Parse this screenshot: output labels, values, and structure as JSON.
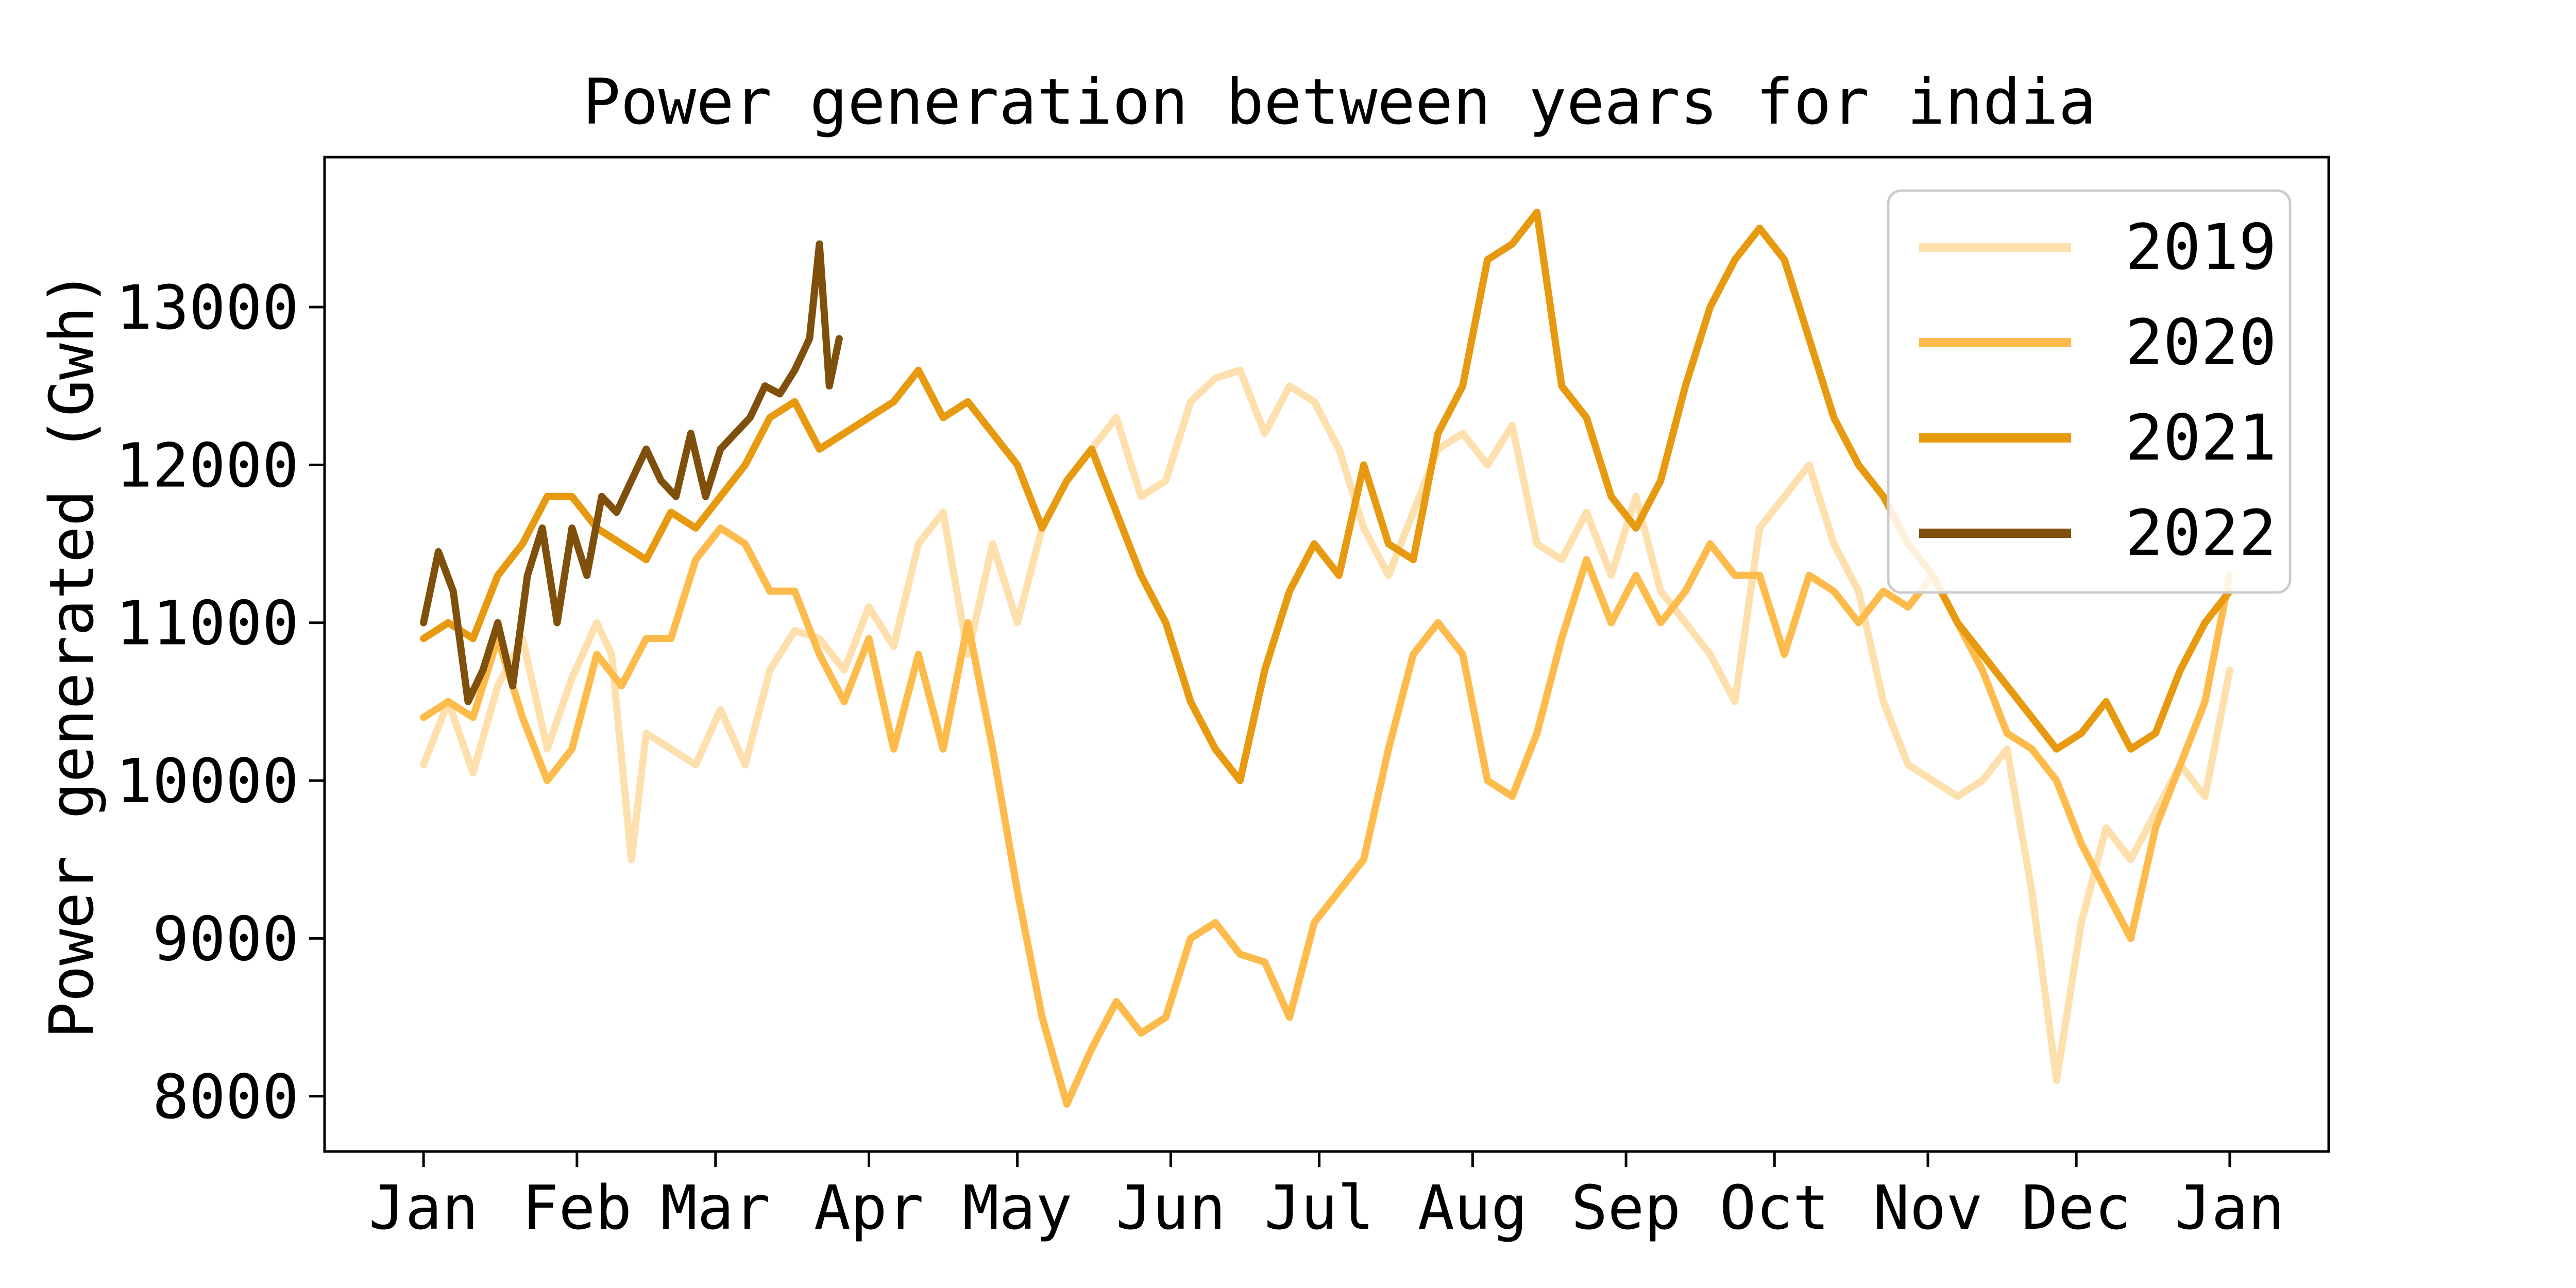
{
  "chart_data": {
    "type": "line",
    "title": "Power generation between years for india",
    "xlabel": "",
    "ylabel": "Power generated (Gwh)",
    "x_ticks": [
      "Jan",
      "Feb",
      "Mar",
      "Apr",
      "May",
      "Jun",
      "Jul",
      "Aug",
      "Sep",
      "Oct",
      "Nov",
      "Dec",
      "Jan"
    ],
    "y_ticks": [
      8000,
      9000,
      10000,
      11000,
      12000,
      13000
    ],
    "xlim_days": [
      -20,
      385
    ],
    "ylim": [
      7650,
      13950
    ],
    "legend_position": "top-right",
    "grid": false,
    "series": [
      {
        "name": "2019",
        "color": "#fde0ad",
        "points": [
          [
            0,
            10100
          ],
          [
            5,
            10500
          ],
          [
            10,
            10050
          ],
          [
            15,
            10600
          ],
          [
            20,
            10900
          ],
          [
            25,
            10200
          ],
          [
            30,
            10650
          ],
          [
            35,
            11000
          ],
          [
            38,
            10800
          ],
          [
            42,
            9500
          ],
          [
            45,
            10300
          ],
          [
            50,
            10200
          ],
          [
            55,
            10100
          ],
          [
            60,
            10450
          ],
          [
            65,
            10100
          ],
          [
            70,
            10700
          ],
          [
            75,
            10950
          ],
          [
            80,
            10900
          ],
          [
            85,
            10700
          ],
          [
            90,
            11100
          ],
          [
            95,
            10850
          ],
          [
            100,
            11500
          ],
          [
            105,
            11700
          ],
          [
            110,
            10800
          ],
          [
            115,
            11500
          ],
          [
            120,
            11000
          ],
          [
            125,
            11600
          ],
          [
            130,
            11900
          ],
          [
            135,
            12100
          ],
          [
            140,
            12300
          ],
          [
            145,
            11800
          ],
          [
            150,
            11900
          ],
          [
            155,
            12400
          ],
          [
            160,
            12550
          ],
          [
            165,
            12600
          ],
          [
            170,
            12200
          ],
          [
            175,
            12500
          ],
          [
            180,
            12400
          ],
          [
            185,
            12100
          ],
          [
            190,
            11600
          ],
          [
            195,
            11300
          ],
          [
            200,
            11700
          ],
          [
            205,
            12100
          ],
          [
            210,
            12200
          ],
          [
            215,
            12000
          ],
          [
            220,
            12250
          ],
          [
            225,
            11500
          ],
          [
            230,
            11400
          ],
          [
            235,
            11700
          ],
          [
            240,
            11300
          ],
          [
            245,
            11800
          ],
          [
            250,
            11200
          ],
          [
            255,
            11000
          ],
          [
            260,
            10800
          ],
          [
            265,
            10500
          ],
          [
            270,
            11600
          ],
          [
            275,
            11800
          ],
          [
            280,
            12000
          ],
          [
            285,
            11500
          ],
          [
            290,
            11200
          ],
          [
            295,
            10500
          ],
          [
            300,
            10100
          ],
          [
            305,
            10000
          ],
          [
            310,
            9900
          ],
          [
            315,
            10000
          ],
          [
            320,
            10200
          ],
          [
            325,
            9300
          ],
          [
            330,
            8100
          ],
          [
            335,
            9100
          ],
          [
            340,
            9700
          ],
          [
            345,
            9500
          ],
          [
            350,
            9800
          ],
          [
            355,
            10100
          ],
          [
            360,
            9900
          ],
          [
            365,
            10700
          ]
        ]
      },
      {
        "name": "2020",
        "color": "#fdbb4b",
        "points": [
          [
            0,
            10400
          ],
          [
            5,
            10500
          ],
          [
            10,
            10400
          ],
          [
            15,
            10900
          ],
          [
            20,
            10400
          ],
          [
            25,
            10000
          ],
          [
            30,
            10200
          ],
          [
            35,
            10800
          ],
          [
            40,
            10600
          ],
          [
            45,
            10900
          ],
          [
            50,
            10900
          ],
          [
            55,
            11400
          ],
          [
            60,
            11600
          ],
          [
            65,
            11500
          ],
          [
            70,
            11200
          ],
          [
            75,
            11200
          ],
          [
            80,
            10800
          ],
          [
            85,
            10500
          ],
          [
            90,
            10900
          ],
          [
            95,
            10200
          ],
          [
            100,
            10800
          ],
          [
            105,
            10200
          ],
          [
            110,
            11000
          ],
          [
            115,
            10200
          ],
          [
            120,
            9300
          ],
          [
            125,
            8500
          ],
          [
            130,
            7950
          ],
          [
            135,
            8300
          ],
          [
            140,
            8600
          ],
          [
            145,
            8400
          ],
          [
            150,
            8500
          ],
          [
            155,
            9000
          ],
          [
            160,
            9100
          ],
          [
            165,
            8900
          ],
          [
            170,
            8850
          ],
          [
            175,
            8500
          ],
          [
            180,
            9100
          ],
          [
            185,
            9300
          ],
          [
            190,
            9500
          ],
          [
            195,
            10200
          ],
          [
            200,
            10800
          ],
          [
            205,
            11000
          ],
          [
            210,
            10800
          ],
          [
            215,
            10000
          ],
          [
            220,
            9900
          ],
          [
            225,
            10300
          ],
          [
            230,
            10900
          ],
          [
            235,
            11400
          ],
          [
            240,
            11000
          ],
          [
            245,
            11300
          ],
          [
            250,
            11000
          ],
          [
            255,
            11200
          ],
          [
            260,
            11500
          ],
          [
            265,
            11300
          ],
          [
            270,
            11300
          ],
          [
            275,
            10800
          ],
          [
            280,
            11300
          ],
          [
            285,
            11200
          ],
          [
            290,
            11000
          ],
          [
            295,
            11200
          ],
          [
            300,
            11100
          ],
          [
            305,
            11300
          ],
          [
            310,
            11000
          ],
          [
            315,
            10700
          ],
          [
            320,
            10300
          ],
          [
            325,
            10200
          ],
          [
            330,
            10000
          ],
          [
            335,
            9600
          ],
          [
            340,
            9300
          ],
          [
            345,
            9000
          ],
          [
            350,
            9700
          ],
          [
            355,
            10100
          ],
          [
            360,
            10500
          ],
          [
            365,
            11300
          ]
        ]
      },
      {
        "name": "2021",
        "color": "#e79a10",
        "points": [
          [
            0,
            10900
          ],
          [
            5,
            11000
          ],
          [
            10,
            10900
          ],
          [
            15,
            11300
          ],
          [
            20,
            11500
          ],
          [
            25,
            11800
          ],
          [
            30,
            11800
          ],
          [
            35,
            11600
          ],
          [
            40,
            11500
          ],
          [
            45,
            11400
          ],
          [
            50,
            11700
          ],
          [
            55,
            11600
          ],
          [
            60,
            11800
          ],
          [
            65,
            12000
          ],
          [
            70,
            12300
          ],
          [
            75,
            12400
          ],
          [
            80,
            12100
          ],
          [
            85,
            12200
          ],
          [
            90,
            12300
          ],
          [
            95,
            12400
          ],
          [
            100,
            12600
          ],
          [
            105,
            12300
          ],
          [
            110,
            12400
          ],
          [
            115,
            12200
          ],
          [
            120,
            12000
          ],
          [
            125,
            11600
          ],
          [
            130,
            11900
          ],
          [
            135,
            12100
          ],
          [
            140,
            11700
          ],
          [
            145,
            11300
          ],
          [
            150,
            11000
          ],
          [
            155,
            10500
          ],
          [
            160,
            10200
          ],
          [
            165,
            10000
          ],
          [
            170,
            10700
          ],
          [
            175,
            11200
          ],
          [
            180,
            11500
          ],
          [
            185,
            11300
          ],
          [
            190,
            12000
          ],
          [
            195,
            11500
          ],
          [
            200,
            11400
          ],
          [
            205,
            12200
          ],
          [
            210,
            12500
          ],
          [
            215,
            13300
          ],
          [
            220,
            13400
          ],
          [
            225,
            13600
          ],
          [
            230,
            12500
          ],
          [
            235,
            12300
          ],
          [
            240,
            11800
          ],
          [
            245,
            11600
          ],
          [
            250,
            11900
          ],
          [
            255,
            12500
          ],
          [
            260,
            13000
          ],
          [
            265,
            13300
          ],
          [
            270,
            13500
          ],
          [
            275,
            13300
          ],
          [
            280,
            12800
          ],
          [
            285,
            12300
          ],
          [
            290,
            12000
          ],
          [
            295,
            11800
          ],
          [
            300,
            11500
          ],
          [
            305,
            11300
          ],
          [
            310,
            11000
          ],
          [
            315,
            10800
          ],
          [
            320,
            10600
          ],
          [
            325,
            10400
          ],
          [
            330,
            10200
          ],
          [
            335,
            10300
          ],
          [
            340,
            10500
          ],
          [
            345,
            10200
          ],
          [
            350,
            10300
          ],
          [
            355,
            10700
          ],
          [
            360,
            11000
          ],
          [
            365,
            11200
          ]
        ]
      },
      {
        "name": "2022",
        "color": "#7f4f0c",
        "points": [
          [
            0,
            11000
          ],
          [
            3,
            11450
          ],
          [
            6,
            11200
          ],
          [
            9,
            10500
          ],
          [
            12,
            10700
          ],
          [
            15,
            11000
          ],
          [
            18,
            10600
          ],
          [
            21,
            11300
          ],
          [
            24,
            11600
          ],
          [
            27,
            11000
          ],
          [
            30,
            11600
          ],
          [
            33,
            11300
          ],
          [
            36,
            11800
          ],
          [
            39,
            11700
          ],
          [
            42,
            11900
          ],
          [
            45,
            12100
          ],
          [
            48,
            11900
          ],
          [
            51,
            11800
          ],
          [
            54,
            12200
          ],
          [
            57,
            11800
          ],
          [
            60,
            12100
          ],
          [
            63,
            12200
          ],
          [
            66,
            12300
          ],
          [
            69,
            12500
          ],
          [
            72,
            12450
          ],
          [
            75,
            12600
          ],
          [
            78,
            12800
          ],
          [
            80,
            13400
          ],
          [
            82,
            12500
          ],
          [
            84,
            12800
          ]
        ]
      }
    ]
  }
}
